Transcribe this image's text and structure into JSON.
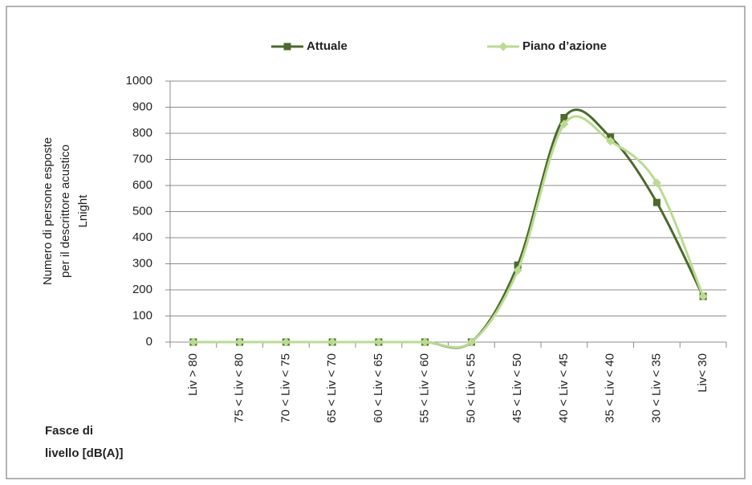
{
  "chart_data": {
    "type": "line",
    "categories": [
      "Liv > 80",
      "75 < Liv < 80",
      "70 < Liv < 75",
      "65 < Liv < 70",
      "60 < Liv < 65",
      "55 < Liv < 60",
      "50 < Liv < 55",
      "45 < Liv < 50",
      "40 < Liv < 45",
      "35 < Liv < 40",
      "30 < Liv < 35",
      "Liv< 30"
    ],
    "series": [
      {
        "name": "Attuale",
        "color": "#4b6a2b",
        "marker": "square",
        "values": [
          0,
          0,
          0,
          0,
          0,
          0,
          0,
          295,
          860,
          785,
          535,
          175
        ]
      },
      {
        "name": "Piano d’azione",
        "color": "#b9dc8f",
        "marker": "diamond",
        "values": [
          0,
          0,
          0,
          0,
          0,
          0,
          0,
          275,
          835,
          770,
          610,
          175
        ]
      }
    ],
    "y_label": [
      "Numero di persone esposte",
      "per il descrittore acustico",
      "Lnight"
    ],
    "x_label": [
      "Fasce di",
      "livello [dB(A)]"
    ],
    "ylim": [
      0,
      1000
    ],
    "yticks": [
      0,
      100,
      200,
      300,
      400,
      500,
      600,
      700,
      800,
      900,
      1000
    ],
    "grid": true,
    "legend": "top",
    "smooth": true
  }
}
